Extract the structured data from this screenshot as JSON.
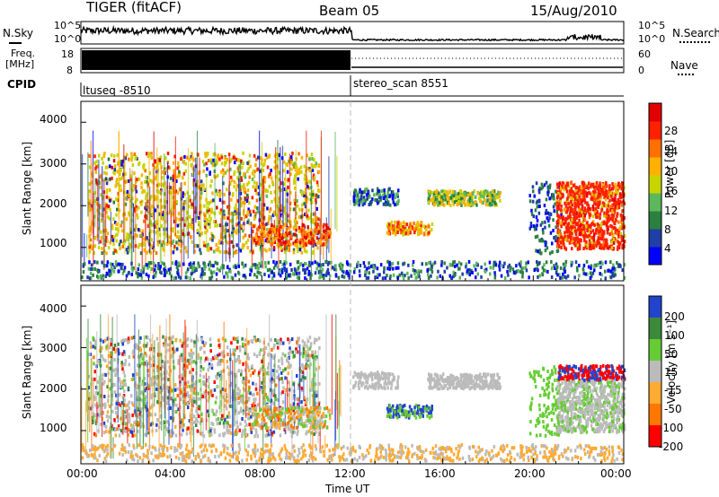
{
  "header": {
    "radar": "TIGER (fitACF)",
    "beam": "Beam 05",
    "date": "15/Aug/2010"
  },
  "nsky_panel": {
    "left_label": "N.Sky",
    "right_label": "N.Search",
    "ticks": [
      "10^5",
      "10^0"
    ],
    "right_ticks": [
      "10^5",
      "10^0"
    ]
  },
  "freq_panel": {
    "left_label_1": "Freq.",
    "left_label_2": "[MHz]",
    "left_ticks": [
      "18",
      "8"
    ],
    "right_label": "Nave",
    "right_ticks": [
      "60",
      "0"
    ]
  },
  "cpid": {
    "label": "CPID",
    "modes": [
      {
        "name": "ltuseq -8510",
        "start_hour": 0
      },
      {
        "name": "stereo_scan 8551",
        "start_hour": 12
      }
    ]
  },
  "x_axis": {
    "label": "Time UT",
    "ticks": [
      "00:00",
      "04:00",
      "08:00",
      "12:00",
      "16:00",
      "20:00",
      "00:00"
    ]
  },
  "colors": {
    "power_scale": [
      "#0000ff",
      "#1f3fa6",
      "#2b7f3f",
      "#5cb85c",
      "#c8d400",
      "#ffb000",
      "#ff7000",
      "#ff2000",
      "#e00000"
    ],
    "velocity_scale": [
      "#2244cc",
      "#3a8a3a",
      "#66cc33",
      "#bbbbbb",
      "#ffaa33",
      "#ff7700",
      "#ff0000"
    ]
  },
  "chart_data": [
    {
      "type": "heatmap",
      "name": "power",
      "ylabel": "Slant Range [km]",
      "ylim": [
        200,
        4500
      ],
      "yticks": [
        "4000",
        "3000",
        "2000",
        "1000"
      ],
      "xlim": [
        0,
        24
      ],
      "colorbar": {
        "label": "Power [dB]",
        "ticks": [
          "28",
          "24",
          "20",
          "16",
          "12",
          "8",
          "4"
        ],
        "range": [
          0,
          32
        ]
      }
    },
    {
      "type": "heatmap",
      "name": "velocity",
      "ylabel": "Slant Range [km]",
      "ylim": [
        200,
        4500
      ],
      "yticks": [
        "4000",
        "3000",
        "2000",
        "1000"
      ],
      "xlim": [
        0,
        24
      ],
      "colorbar": {
        "label": "Velocity [m s⁻¹]",
        "ticks": [
          "200",
          "100",
          "50",
          "15",
          "-15",
          "-50",
          "-100",
          "-200"
        ]
      }
    }
  ]
}
